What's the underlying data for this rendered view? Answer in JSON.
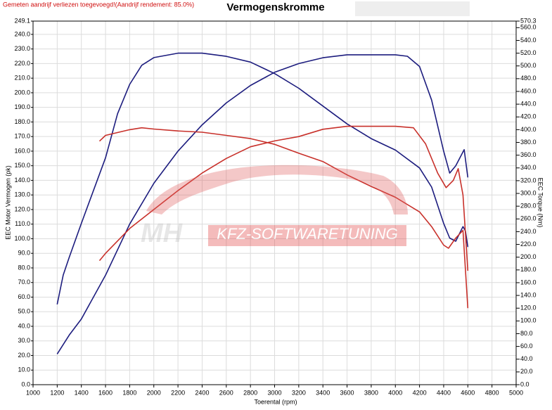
{
  "chart_data": {
    "type": "line",
    "title": "Vermogenskromme",
    "note": "Gemeten aandrijf verliezen toegevoegd!(Aandrijf rendement: 85.0%)",
    "watermark": [
      "MH",
      "KFZ-SOFTWARETUNING"
    ],
    "x_label": "Toerental (rpm)",
    "y_label": "EEC Motor Vermogen (pk)",
    "y2_label": "EEC Torque (Nm)",
    "xlim": [
      1000,
      5000
    ],
    "xticks": [
      1000,
      1200,
      1400,
      1600,
      1800,
      2000,
      2200,
      2400,
      2600,
      2800,
      3000,
      3200,
      3400,
      3600,
      3800,
      4000,
      4200,
      4400,
      4600,
      4800,
      5000
    ],
    "ylim": [
      0,
      249.1
    ],
    "yticks": [
      {
        "value": 0,
        "label": "0.0"
      },
      {
        "value": 10,
        "label": "10.0"
      },
      {
        "value": 20,
        "label": "20.0"
      },
      {
        "value": 30,
        "label": "30.0"
      },
      {
        "value": 40,
        "label": "40.0"
      },
      {
        "value": 50,
        "label": "50.0"
      },
      {
        "value": 60,
        "label": "60.0"
      },
      {
        "value": 70,
        "label": "70.0"
      },
      {
        "value": 80,
        "label": "80.0"
      },
      {
        "value": 90,
        "label": "90.0"
      },
      {
        "value": 100,
        "label": "100.0"
      },
      {
        "value": 110,
        "label": "110.0"
      },
      {
        "value": 120,
        "label": "120.0"
      },
      {
        "value": 130,
        "label": "130.0"
      },
      {
        "value": 140,
        "label": "140.0"
      },
      {
        "value": 150,
        "label": "150.0"
      },
      {
        "value": 160,
        "label": "160.0"
      },
      {
        "value": 170,
        "label": "170.0"
      },
      {
        "value": 180,
        "label": "180.0"
      },
      {
        "value": 190,
        "label": "190.0"
      },
      {
        "value": 200,
        "label": "200.0"
      },
      {
        "value": 210,
        "label": "210.0"
      },
      {
        "value": 220,
        "label": "220.0"
      },
      {
        "value": 230,
        "label": "230.0"
      },
      {
        "value": 240,
        "label": "240.0"
      },
      249.1
    ],
    "y2lim": [
      0,
      570.3
    ],
    "y2ticks": [
      {
        "value": 0,
        "label": "0.0"
      },
      {
        "value": 20,
        "label": "20.0"
      },
      {
        "value": 40,
        "label": "40.0"
      },
      {
        "value": 60,
        "label": "60.0"
      },
      {
        "value": 80,
        "label": "80.0"
      },
      {
        "value": 100,
        "label": "100.0"
      },
      {
        "value": 120,
        "label": "120.0"
      },
      {
        "value": 140,
        "label": "140.0"
      },
      {
        "value": 160,
        "label": "160.0"
      },
      {
        "value": 180,
        "label": "180.0"
      },
      {
        "value": 200,
        "label": "200.0"
      },
      {
        "value": 220,
        "label": "220.0"
      },
      {
        "value": 240,
        "label": "240.0"
      },
      {
        "value": 260,
        "label": "260.0"
      },
      {
        "value": 280,
        "label": "280.0"
      },
      {
        "value": 300,
        "label": "300.0"
      },
      {
        "value": 320,
        "label": "320.0"
      },
      {
        "value": 340,
        "label": "340.0"
      },
      {
        "value": 360,
        "label": "360.0"
      },
      {
        "value": 380,
        "label": "380.0"
      },
      {
        "value": 400,
        "label": "400.0"
      },
      {
        "value": 420,
        "label": "420.0"
      },
      {
        "value": 440,
        "label": "440.0"
      },
      {
        "value": 460,
        "label": "460.0"
      },
      {
        "value": 480,
        "label": "480.0"
      },
      {
        "value": 500,
        "label": "500.0"
      },
      {
        "value": 520,
        "label": "520.0"
      },
      {
        "value": 540,
        "label": "540.0"
      },
      {
        "value": 560,
        "label": "560.0"
      },
      570.3
    ],
    "grid": true,
    "series": [
      {
        "color": "#1c1c7e",
        "axis": "y",
        "x": [
          1200,
          1300,
          1400,
          1600,
          1800,
          2000,
          2200,
          2400,
          2600,
          2800,
          3000,
          3200,
          3400,
          3600,
          3800,
          4000,
          4100,
          4200,
          4300,
          4400,
          4450,
          4500,
          4570,
          4600
        ],
        "values": [
          21,
          34,
          45,
          75,
          110,
          138,
          160,
          178,
          193,
          205,
          214,
          220,
          224,
          226,
          226,
          226,
          225,
          218,
          195,
          160,
          145,
          150,
          161,
          142
        ]
      },
      {
        "color": "#1c1c7e",
        "axis": "y2",
        "x": [
          1200,
          1250,
          1300,
          1400,
          1600,
          1700,
          1800,
          1900,
          2000,
          2200,
          2400,
          2600,
          2800,
          3000,
          3200,
          3400,
          3600,
          3800,
          4000,
          4200,
          4300,
          4400,
          4450,
          4500,
          4560,
          4580,
          4600
        ],
        "values": [
          126,
          172,
          200,
          253,
          356,
          425,
          471,
          501,
          513,
          520,
          520,
          515,
          506,
          488,
          465,
          437,
          409,
          386,
          368,
          340,
          310,
          253,
          230,
          225,
          248,
          241,
          216
        ]
      },
      {
        "color": "#c8302a",
        "axis": "y",
        "x": [
          1550,
          1600,
          1800,
          2000,
          2200,
          2400,
          2600,
          2800,
          3000,
          3200,
          3400,
          3600,
          3800,
          4000,
          4150,
          4250,
          4350,
          4420,
          4480,
          4520,
          4560,
          4600
        ],
        "values": [
          85,
          90,
          107,
          120,
          133,
          145,
          155,
          163,
          167,
          170,
          175,
          177,
          177,
          177,
          176,
          165,
          145,
          135,
          140,
          148,
          130,
          78
        ]
      },
      {
        "color": "#c8302a",
        "axis": "y2",
        "x": [
          1550,
          1600,
          1800,
          1900,
          2000,
          2200,
          2400,
          2600,
          2800,
          3000,
          3200,
          3400,
          3600,
          3800,
          4000,
          4200,
          4300,
          4400,
          4440,
          4500,
          4560,
          4600
        ],
        "values": [
          382,
          391,
          400,
          403,
          401,
          398,
          396,
          391,
          386,
          377,
          363,
          350,
          329,
          311,
          294,
          271,
          248,
          219,
          214,
          230,
          242,
          120
        ]
      }
    ]
  }
}
